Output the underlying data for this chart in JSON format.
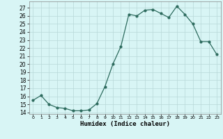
{
  "x": [
    0,
    1,
    2,
    3,
    4,
    5,
    6,
    7,
    8,
    9,
    10,
    11,
    12,
    13,
    14,
    15,
    16,
    17,
    18,
    19,
    20,
    21,
    22,
    23
  ],
  "y": [
    15.5,
    16.1,
    15.0,
    14.6,
    14.5,
    14.2,
    14.2,
    14.3,
    15.1,
    17.2,
    20.0,
    22.2,
    26.2,
    26.0,
    26.7,
    26.8,
    26.3,
    25.8,
    27.2,
    26.2,
    25.0,
    22.8,
    22.8,
    21.2
  ],
  "line_color": "#2d6b5e",
  "marker": "o",
  "markersize": 2.0,
  "linewidth": 0.9,
  "bg_color": "#d8f5f5",
  "grid_color": "#b8d8d8",
  "xlabel": "Humidex (Indice chaleur)",
  "xlabel_fontsize": 6.5,
  "ylabel_ticks": [
    14,
    15,
    16,
    17,
    18,
    19,
    20,
    21,
    22,
    23,
    24,
    25,
    26,
    27
  ],
  "xtick_labels": [
    "0",
    "1",
    "2",
    "3",
    "4",
    "5",
    "6",
    "7",
    "8",
    "9",
    "10",
    "11",
    "12",
    "13",
    "14",
    "15",
    "16",
    "17",
    "18",
    "19",
    "20",
    "21",
    "22",
    "23"
  ],
  "ylim": [
    13.8,
    27.8
  ],
  "xlim": [
    -0.5,
    23.5
  ]
}
